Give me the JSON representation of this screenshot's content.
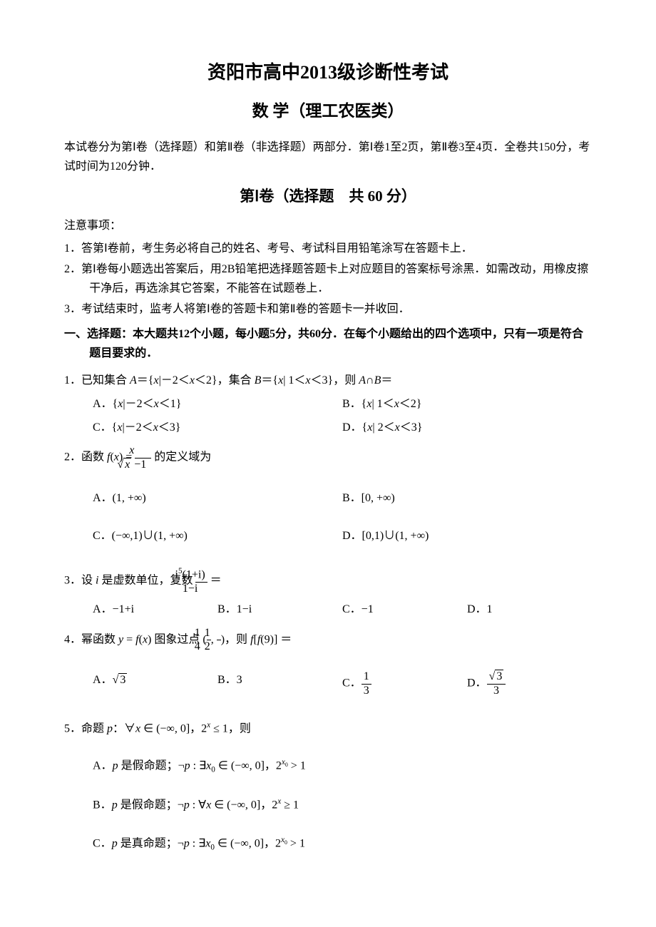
{
  "title_main": "资阳市高中2013级诊断性考试",
  "title_sub": "数 学（理工农医类）",
  "intro": "本试卷分为第Ⅰ卷（选择题）和第Ⅱ卷（非选择题）两部分．第Ⅰ卷1至2页，第Ⅱ卷3至4页．全卷共150分，考试时间为120分钟．",
  "section_header": "第Ⅰ卷（选择题　共 60 分）",
  "notice_title": "注意事项：",
  "notice_items": [
    "1．答第Ⅰ卷前，考生务必将自己的姓名、考号、考试科目用铅笔涂写在答题卡上．",
    "2．第Ⅰ卷每小题选出答案后，用2B铅笔把选择题答题卡上对应题目的答案标号涂黑．如需改动，用橡皮擦干净后，再选涂其它答案，不能答在试题卷上．",
    "3．考试结束时，监考人将第Ⅰ卷的答题卡和第Ⅱ卷的答题卡一并收回．"
  ],
  "section_one_heading": "一、选择题：本大题共12个小题，每小题5分，共60分．在每个小题给出的四个选项中，只有一项是符合题目要求的．",
  "q1": {
    "stem_prefix": "1．已知集合 ",
    "stem_mid1": "，集合 ",
    "stem_mid2": "，则 ",
    "stem_suffix": "＝",
    "setA": "A＝{x|－2＜x＜2}",
    "setB": "B＝{x| 1＜x＜3}",
    "intersect": "A∩B",
    "optA": "A．{x|－2＜x＜1}",
    "optB": "B．{x| 1＜x＜2}",
    "optC": "C．{x|－2＜x＜3}",
    "optD": "D．{x| 2＜x＜3}"
  },
  "q2": {
    "stem_prefix": "2．函数 ",
    "stem_suffix": " 的定义域为",
    "optA": "A．(1, +∞)",
    "optB": "B．[0, +∞)",
    "optC": "C．(−∞,1)∪(1, +∞)",
    "optD": "D．[0,1)∪(1, +∞)"
  },
  "q3": {
    "stem_prefix": "3．设 ",
    "stem_mid": " 是虚数单位，复数 ",
    "eq": "＝",
    "optA": "A．−1+i",
    "optB": "B．1−i",
    "optC": "C．−1",
    "optD": "D．1"
  },
  "q4": {
    "stem_prefix": "4．幂函数 ",
    "stem_mid": " 图象过点 ",
    "stem_suffix": "，则 ",
    "eq": " ＝",
    "optA_label": "A．",
    "optB_label": "B．3",
    "optC_label": "C．",
    "optD_label": "D．"
  },
  "q5": {
    "stem_prefix": "5．命题 ",
    "stem_suffix": "，则",
    "optA": "A．p 是假命题；¬p : ∃x₀ ∈ (−∞, 0]，2^{x₀} > 1",
    "optB": "B．p 是假命题；¬p : ∀x ∈ (−∞, 0]，2^{x} ≥ 1",
    "optC": "C．p 是真命题；¬p : ∃x₀ ∈ (−∞, 0]，2^{x₀} > 1"
  },
  "colors": {
    "text": "#000000",
    "background": "#ffffff"
  },
  "typography": {
    "body_font": "SimSun / 宋体",
    "math_font": "Times New Roman",
    "title_size_pt": 20,
    "subtitle_size_pt": 17,
    "body_size_pt": 12
  }
}
